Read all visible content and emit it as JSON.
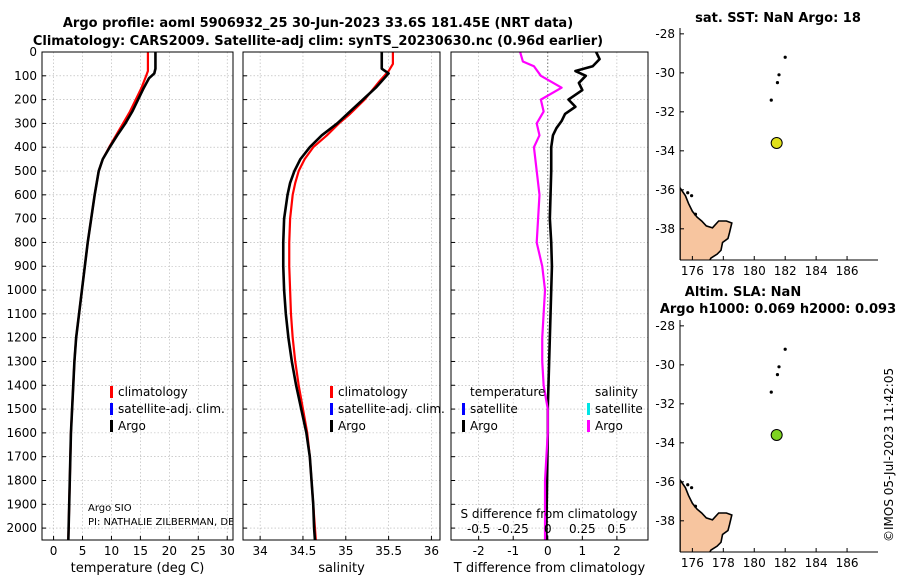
{
  "titles": {
    "line1": "Argo profile: aoml 5906932_25 30-Jun-2023 33.6S 181.45E (NRT data)",
    "line2": "Climatology: CARS2009. Satellite-adj clim: synTS_20230630.nc (0.96d earlier)"
  },
  "depth_ticks": [
    0,
    100,
    200,
    300,
    400,
    500,
    600,
    700,
    800,
    900,
    1000,
    1100,
    1200,
    1300,
    1400,
    1500,
    1600,
    1700,
    1800,
    1900,
    2000
  ],
  "colors": {
    "argo": "#000000",
    "climatology": "#ff0000",
    "satellite": "#0000ff",
    "sal_diff": "#ff00ff",
    "sal_sat": "#00e5e5",
    "land": "#f7c59f",
    "float_sst": "#e2e21a",
    "float_sla": "#7ed321"
  },
  "legends": {
    "profile": [
      "climatology",
      "satellite-adj. clim.",
      "Argo"
    ],
    "diff": {
      "temperature_header": "temperature",
      "salinity_header": "salinity",
      "temperature_items": [
        "satellite",
        "Argo"
      ],
      "salinity_items": [
        "satellite",
        "Argo"
      ]
    }
  },
  "credits": {
    "org": "Argo SIO",
    "pi": "PI: NATHALIE ZILBERMAN, DE"
  },
  "timestamp": "©IMOS 05-Jul-2023 11:42:05",
  "chart_data": [
    {
      "type": "line",
      "name": "temperature",
      "xlabel": "temperature (deg C)",
      "ylabel": "depth",
      "xlim": [
        -2,
        31
      ],
      "ylim": [
        2050,
        0
      ],
      "grid": true,
      "xticks": [
        0,
        5,
        10,
        15,
        20,
        25,
        30
      ],
      "series": [
        {
          "name": "climatology",
          "depth": [
            0,
            80,
            100,
            150,
            200,
            250,
            300,
            350,
            400,
            450,
            500,
            600,
            700,
            800,
            900,
            1000,
            1100,
            1200,
            1300,
            1400,
            1500,
            1600,
            1700,
            1800,
            1900,
            2000,
            2050
          ],
          "values": [
            16.3,
            16.3,
            16.0,
            15.2,
            14.2,
            13.2,
            12.0,
            10.8,
            9.6,
            8.5,
            7.8,
            7.1,
            6.5,
            5.9,
            5.4,
            4.9,
            4.4,
            3.9,
            3.6,
            3.4,
            3.2,
            3.0,
            2.9,
            2.8,
            2.7,
            2.6,
            2.55
          ]
        },
        {
          "name": "Argo",
          "depth": [
            0,
            30,
            70,
            90,
            110,
            150,
            200,
            250,
            300,
            350,
            400,
            450,
            500,
            600,
            700,
            800,
            900,
            1000,
            1100,
            1200,
            1300,
            1400,
            1500,
            1600,
            1700,
            1800,
            1900,
            2000,
            2050
          ],
          "values": [
            17.6,
            17.6,
            17.6,
            17.4,
            16.5,
            15.6,
            14.6,
            13.6,
            12.4,
            11.0,
            9.7,
            8.5,
            7.8,
            7.1,
            6.5,
            5.9,
            5.4,
            4.9,
            4.4,
            3.9,
            3.6,
            3.4,
            3.2,
            3.0,
            2.9,
            2.8,
            2.7,
            2.6,
            2.55
          ]
        }
      ]
    },
    {
      "type": "line",
      "name": "salinity",
      "xlabel": "salinity",
      "ylabel": "depth",
      "xlim": [
        33.8,
        36.1
      ],
      "ylim": [
        2050,
        0
      ],
      "grid": true,
      "xticks": [
        34,
        34.5,
        35,
        35.5,
        36
      ],
      "xticklabels": [
        "34",
        "34.5",
        "35",
        "35.5",
        "36"
      ],
      "series": [
        {
          "name": "climatology",
          "depth": [
            0,
            50,
            80,
            120,
            200,
            260,
            300,
            350,
            400,
            450,
            500,
            550,
            600,
            700,
            800,
            900,
            1000,
            1100,
            1200,
            1300,
            1400,
            1500,
            1600,
            1700,
            1800,
            1900,
            2000,
            2050
          ],
          "values": [
            35.55,
            35.55,
            35.5,
            35.4,
            35.22,
            35.05,
            34.92,
            34.78,
            34.62,
            34.52,
            34.45,
            34.41,
            34.38,
            34.35,
            34.34,
            34.34,
            34.35,
            34.36,
            34.38,
            34.41,
            34.45,
            34.5,
            34.55,
            34.58,
            34.6,
            34.62,
            34.64,
            34.65
          ]
        },
        {
          "name": "Argo",
          "depth": [
            0,
            20,
            70,
            90,
            110,
            150,
            200,
            250,
            300,
            350,
            400,
            450,
            500,
            550,
            600,
            700,
            800,
            900,
            1000,
            1100,
            1200,
            1300,
            1400,
            1500,
            1600,
            1700,
            1800,
            1900,
            2000,
            2050
          ],
          "values": [
            35.42,
            35.42,
            35.42,
            35.5,
            35.45,
            35.35,
            35.2,
            35.05,
            34.9,
            34.72,
            34.58,
            34.47,
            34.4,
            34.35,
            34.32,
            34.28,
            34.27,
            34.27,
            34.28,
            34.3,
            34.33,
            34.37,
            34.42,
            34.48,
            34.54,
            34.58,
            34.6,
            34.62,
            34.63,
            34.64
          ]
        }
      ]
    },
    {
      "type": "line",
      "name": "T difference from climatology",
      "xlabel": "T difference from climatology",
      "ylabel": "depth",
      "xlim": [
        -2.8,
        2.9
      ],
      "ylim": [
        2050,
        0
      ],
      "grid": true,
      "xticks": [
        -2,
        -1,
        0,
        1,
        2
      ],
      "top_axis": {
        "label": "S difference from climatology",
        "ticks": [
          -0.5,
          -0.25,
          0,
          0.25,
          0.5
        ],
        "ticklabels": [
          "-0.5",
          "-0.25",
          "0",
          "0.25",
          "0.5"
        ]
      },
      "series": [
        {
          "name": "temperature Argo",
          "depth": [
            0,
            30,
            60,
            80,
            100,
            130,
            160,
            200,
            230,
            260,
            290,
            320,
            350,
            400,
            500,
            600,
            700,
            800,
            900,
            1000,
            1100,
            1200,
            1300,
            1400,
            1500,
            1600,
            1800,
            2000,
            2050
          ],
          "values": [
            1.4,
            1.5,
            1.3,
            0.8,
            1.1,
            0.9,
            1.0,
            0.6,
            0.8,
            0.5,
            0.4,
            0.25,
            0.15,
            0.1,
            0.1,
            0.08,
            0.06,
            0.1,
            0.12,
            0.1,
            0.08,
            0.06,
            0.04,
            0.02,
            0.0,
            0.0,
            -0.02,
            -0.04,
            -0.04
          ]
        },
        {
          "name": "salinity Argo",
          "depth": [
            0,
            40,
            60,
            100,
            150,
            200,
            250,
            300,
            350,
            400,
            500,
            600,
            700,
            800,
            900,
            1000,
            1100,
            1200,
            1300,
            1400,
            1500,
            1600,
            1700,
            1800,
            1900,
            2000,
            2050
          ],
          "values": [
            -0.2,
            -0.18,
            -0.1,
            -0.05,
            0.1,
            -0.05,
            -0.03,
            -0.08,
            -0.06,
            -0.1,
            -0.08,
            -0.06,
            -0.07,
            -0.08,
            -0.04,
            -0.02,
            -0.03,
            -0.04,
            -0.04,
            -0.03,
            0.0,
            0.0,
            -0.01,
            -0.02,
            -0.02,
            -0.02,
            -0.02
          ]
        }
      ]
    },
    {
      "type": "map",
      "name": "sst_map",
      "title": "sat. SST: NaN Argo: 18",
      "xlim": [
        175.2,
        188
      ],
      "ylim": [
        -39.6,
        -27.7
      ],
      "xticks": [
        176,
        178,
        180,
        182,
        184,
        186
      ],
      "yticks": [
        -28,
        -30,
        -32,
        -34,
        -36,
        -38
      ],
      "float": {
        "lon": 181.45,
        "lat": -33.6
      },
      "islands": [
        [
          182.0,
          -29.2
        ],
        [
          181.6,
          -30.1
        ],
        [
          181.5,
          -30.5
        ],
        [
          181.1,
          -31.4
        ]
      ]
    },
    {
      "type": "map",
      "name": "sla_map",
      "title": "Altim. SLA: NaN",
      "subtitle": "Argo h1000: 0.069 h2000: 0.093",
      "xlim": [
        175.2,
        188
      ],
      "ylim": [
        -39.6,
        -27.7
      ],
      "xticks": [
        176,
        178,
        180,
        182,
        184,
        186
      ],
      "yticks": [
        -28,
        -30,
        -32,
        -34,
        -36,
        -38
      ],
      "float": {
        "lon": 181.45,
        "lat": -33.6
      },
      "islands": [
        [
          182.0,
          -29.2
        ],
        [
          181.6,
          -30.1
        ],
        [
          181.5,
          -30.5
        ],
        [
          181.1,
          -31.4
        ]
      ]
    }
  ]
}
